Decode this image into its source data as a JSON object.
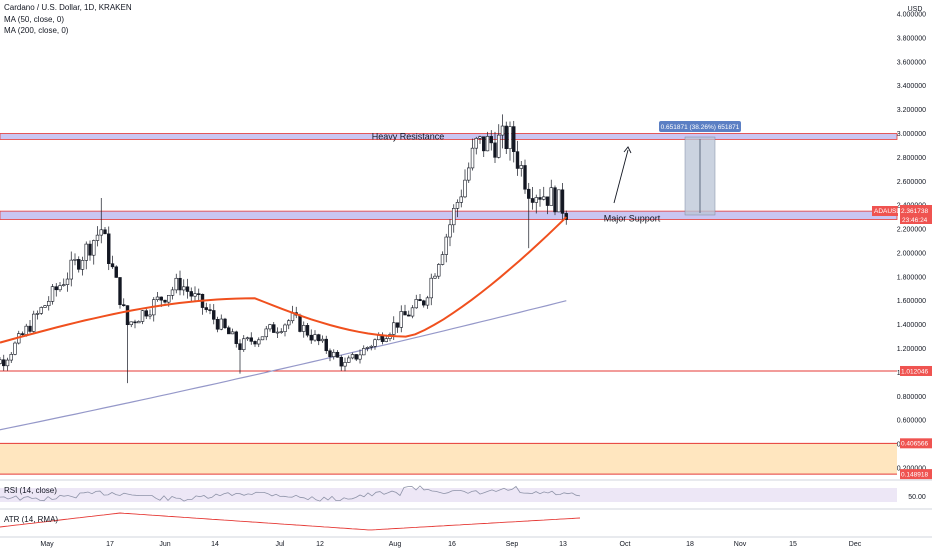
{
  "header": {
    "symbol_line": "Cardano / U.S. Dollar, 1D, KRAKEN",
    "ma50_label": "MA (50, close, 0)",
    "ma200_label": "MA (200, close, 0)",
    "rsi_label": "RSI (14, close)",
    "atr_label": "ATR (14, RMA)"
  },
  "colors": {
    "up_candle": "#26a69a",
    "down_candle": "#ef5350",
    "candle_outline": "#131722",
    "ma50": "#f0501e",
    "ma200": "#9598c9",
    "zone_fill": "#c9c6f2",
    "zone_border": "#e53935",
    "horizontal_line": "#e53935",
    "lower_band_fill": "#ffe6bf",
    "rsi_line": "#8e93a8",
    "atr_line": "#e53935",
    "price_tag": "#ef5350",
    "measure_fill": "#b9c4d6",
    "measure_label_bg": "#5b7fc4"
  },
  "chart_data": {
    "type": "candlestick",
    "symbol": "ADAUSD",
    "interval": "1D",
    "exchange": "KRAKEN",
    "y_axis_title": "USD",
    "ylim": [
      0.16,
      4.0
    ],
    "y_ticks": [
      "4.000000",
      "3.800000",
      "3.600000",
      "3.400000",
      "3.200000",
      "3.000000",
      "2.800000",
      "2.600000",
      "2.400000",
      "2.200000",
      "2.000000",
      "1.800000",
      "1.600000",
      "1.400000",
      "1.200000",
      "1.000000",
      "0.800000",
      "0.600000",
      "0.400000",
      "0.200000"
    ],
    "x_ticks": [
      "May",
      "17",
      "Jun",
      "14",
      "Jul",
      "12",
      "Aug",
      "16",
      "Sep",
      "13",
      "Oct",
      "18",
      "Nov",
      "15",
      "Dec"
    ],
    "key_points": [
      {
        "date": "2021-04-20",
        "close": 1.1
      },
      {
        "date": "2021-05-16",
        "high": 2.46,
        "close": 2.2
      },
      {
        "date": "2021-05-23",
        "low": 0.91,
        "close": 1.4
      },
      {
        "date": "2021-06-06",
        "close": 1.75
      },
      {
        "date": "2021-06-22",
        "low": 0.99,
        "close": 1.22
      },
      {
        "date": "2021-07-06",
        "close": 1.45
      },
      {
        "date": "2021-07-20",
        "low": 1.01,
        "close": 1.06
      },
      {
        "date": "2021-08-10",
        "close": 1.6
      },
      {
        "date": "2021-08-16",
        "close": 2.15
      },
      {
        "date": "2021-08-24",
        "close": 2.9
      },
      {
        "date": "2021-09-02",
        "high": 3.1,
        "close": 2.95
      },
      {
        "date": "2021-09-07",
        "low": 2.04,
        "close": 2.55
      },
      {
        "date": "2021-09-14",
        "close": 2.45
      },
      {
        "date": "2021-09-17",
        "close": 2.36
      }
    ],
    "ma50": {
      "name": "MA (50, close, 0)",
      "start": 1.25,
      "mid_peak": 1.62,
      "end": 2.3
    },
    "ma200": {
      "name": "MA (200, close, 0)",
      "start": 0.52,
      "end": 1.6
    },
    "last_price": "2.361738",
    "last_price_label": "ADAUSD",
    "countdown": "23:46:24",
    "levels": [
      {
        "label": "Heavy Resistance",
        "low": 2.95,
        "high": 3.0
      },
      {
        "label": "Major Support",
        "low": 2.28,
        "high": 2.35
      },
      {
        "value": "1.012046"
      },
      {
        "value": "0.406566"
      },
      {
        "value": "0.148918"
      }
    ],
    "measurement_label": "0.651871 (38.26%) 651871",
    "rsi_level": "50.00",
    "grid": false,
    "legend": "top-left"
  }
}
